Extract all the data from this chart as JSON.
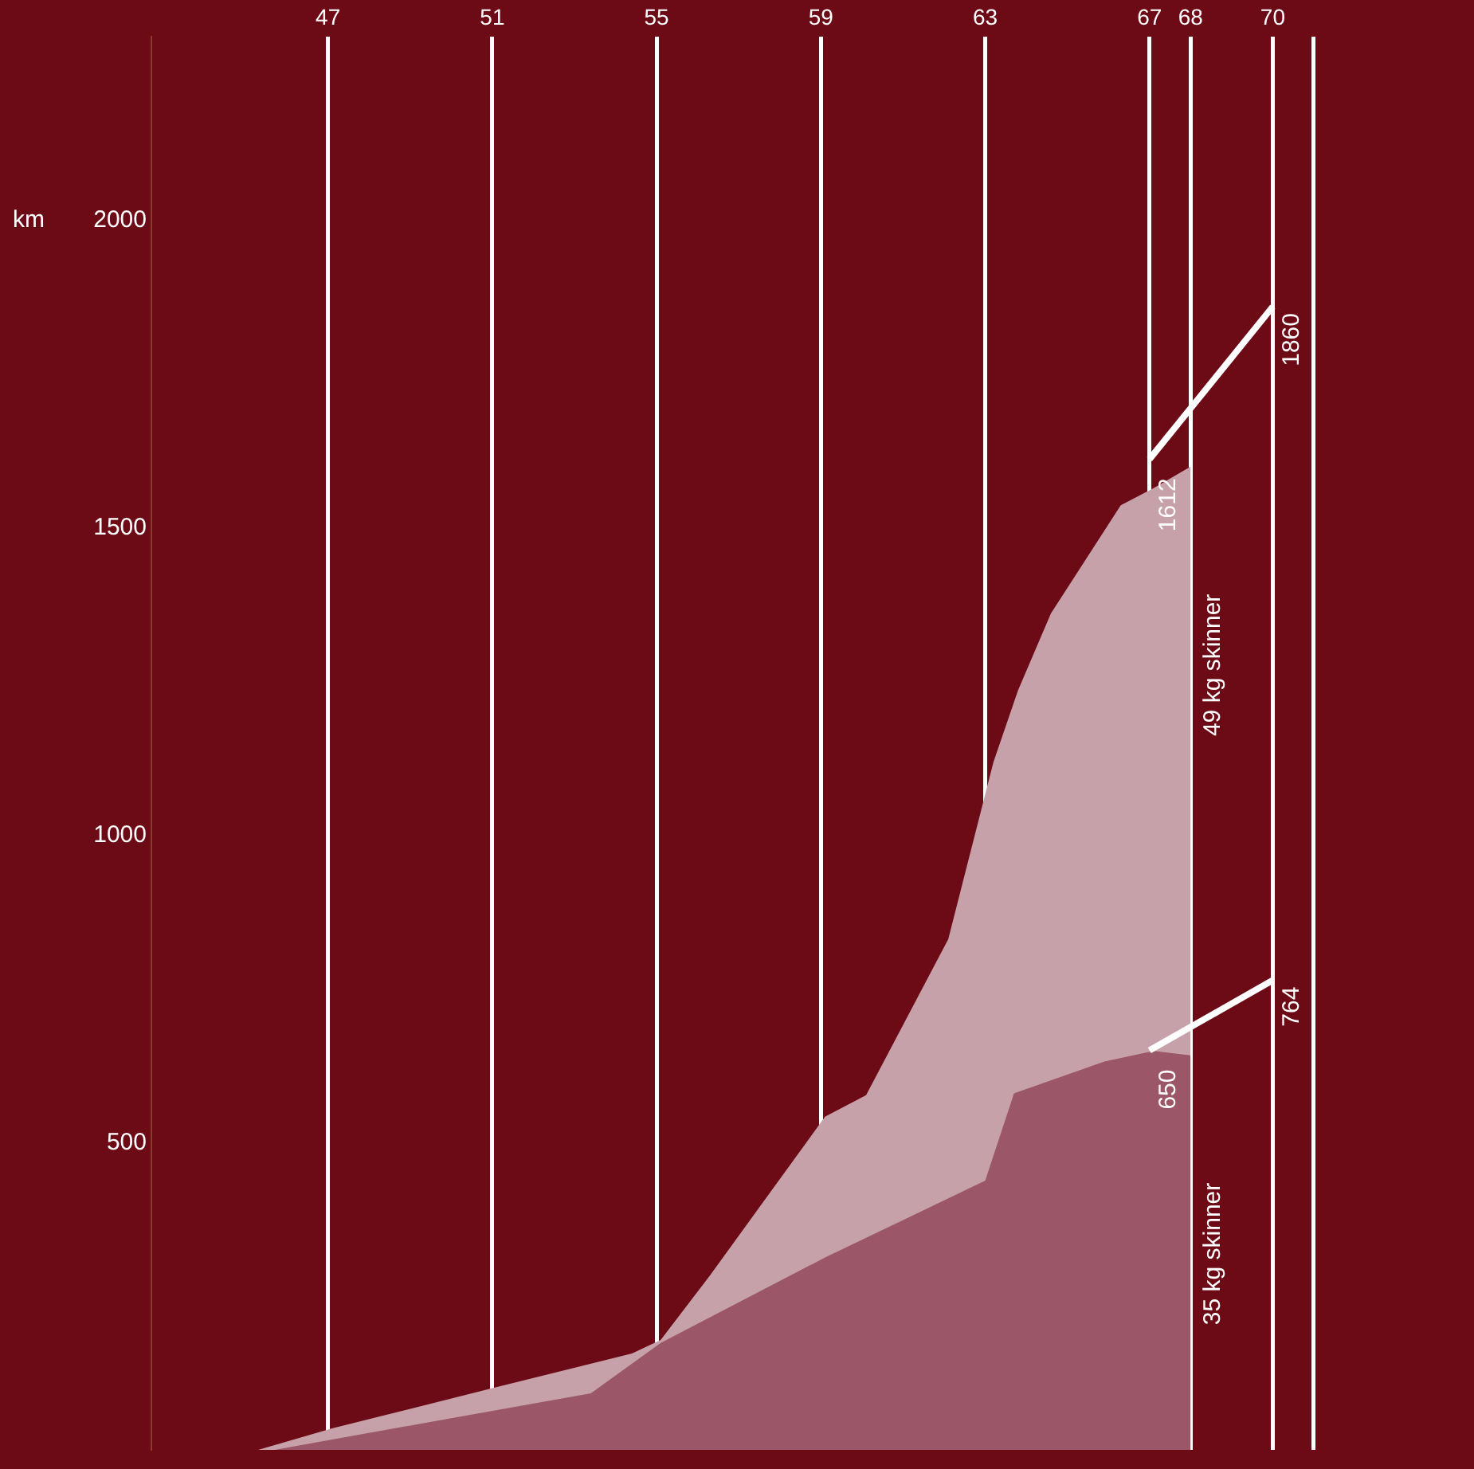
{
  "chart_data": {
    "type": "area",
    "ylabel": "km",
    "xlim": [
      1942.7,
      1974.9
    ],
    "ylim": [
      0,
      2300
    ],
    "xticks": [
      {
        "value": 1947,
        "label": "47"
      },
      {
        "value": 1951,
        "label": "51"
      },
      {
        "value": 1955,
        "label": "55"
      },
      {
        "value": 1959,
        "label": "59"
      },
      {
        "value": 1963,
        "label": "63"
      },
      {
        "value": 1967,
        "label": "67"
      },
      {
        "value": 1968,
        "label": "68"
      },
      {
        "value": 1970,
        "label": "70"
      },
      {
        "value": 1971,
        "label": null
      }
    ],
    "yticks": [
      500,
      1000,
      1500,
      2000
    ],
    "grid": "x",
    "legend": false,
    "series": [
      {
        "name": "49 kg skinner",
        "type": "area",
        "color": "#c7a1aa",
        "x": [
          1945.3,
          1947.1,
          1951.1,
          1954.4,
          1955.1,
          1956.3,
          1959.1,
          1960.1,
          1962.1,
          1963.2,
          1963.8,
          1964.6,
          1966.3,
          1967.1,
          1968
        ],
        "values": [
          0,
          35,
          102,
          157,
          179,
          284,
          542,
          577,
          831,
          1119,
          1236,
          1361,
          1537,
          1565,
          1600
        ]
      },
      {
        "name": "35 kg skinner",
        "type": "area",
        "color": "#9b5767",
        "x": [
          1945.7,
          1947.1,
          1953.4,
          1955.1,
          1959.1,
          1963,
          1963.7,
          1965.9,
          1967.1,
          1968
        ],
        "values": [
          0,
          17,
          92,
          174,
          313,
          438,
          580,
          632,
          649,
          642
        ]
      },
      {
        "type": "line",
        "color": "#ffffff",
        "x": [
          1967,
          1970
        ],
        "values": [
          1612,
          1860
        ],
        "value_labels": [
          "1612",
          "1860"
        ]
      },
      {
        "type": "line",
        "color": "#ffffff",
        "x": [
          1967,
          1970
        ],
        "values": [
          650,
          764
        ],
        "value_labels": [
          "650",
          "764"
        ]
      }
    ]
  }
}
